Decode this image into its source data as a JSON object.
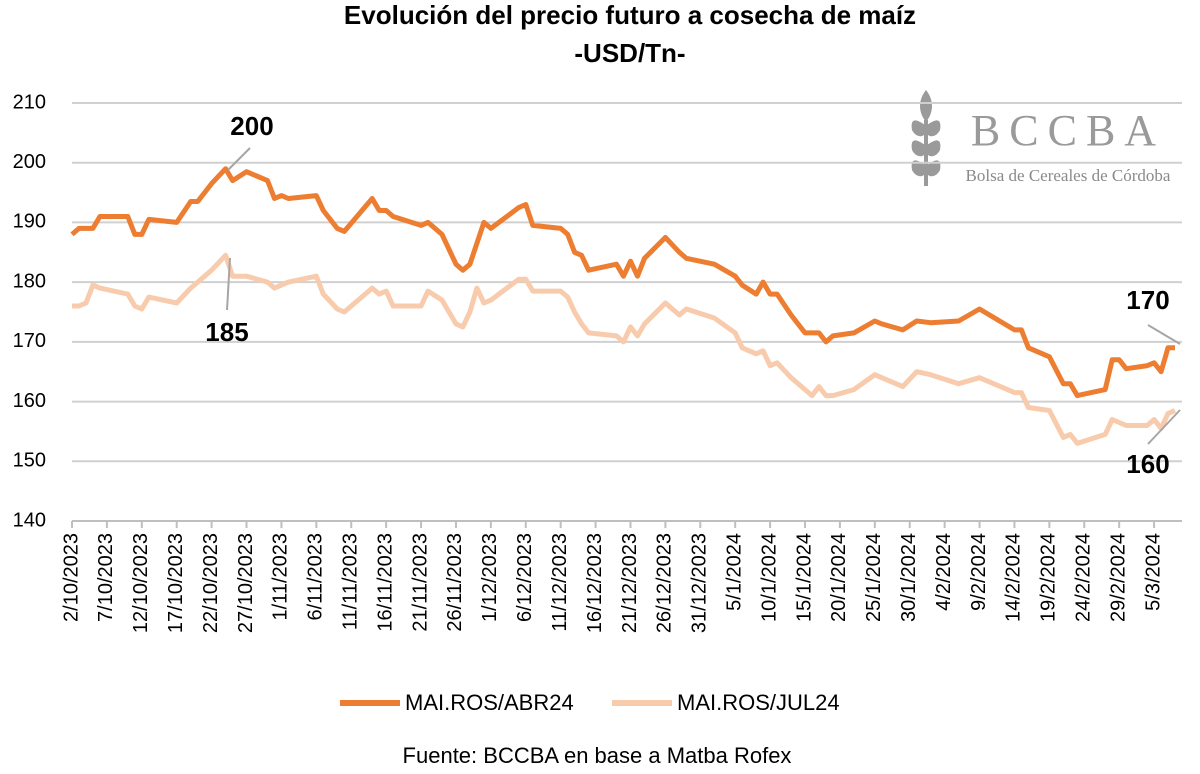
{
  "chart_data": {
    "type": "line",
    "title": "Evolución del precio futuro a cosecha de maíz",
    "subtitle": "-USD/Tn-",
    "source": "Fuente: BCCBA en base a Matba Rofex",
    "logo": {
      "title": "BCCBA",
      "subtitle": "Bolsa de Cereales de Córdoba"
    },
    "x": [
      "2/10/2023",
      "3/10/2023",
      "4/10/2023",
      "5/10/2023",
      "6/10/2023",
      "10/10/2023",
      "11/10/2023",
      "12/10/2023",
      "13/10/2023",
      "17/10/2023",
      "19/10/2023",
      "20/10/2023",
      "22/10/2023",
      "24/10/2023",
      "25/10/2023",
      "27/10/2023",
      "30/10/2023",
      "31/10/2023",
      "1/11/2023",
      "2/11/2023",
      "6/11/2023",
      "7/11/2023",
      "9/11/2023",
      "10/11/2023",
      "14/11/2023",
      "15/11/2023",
      "16/11/2023",
      "17/11/2023",
      "21/11/2023",
      "22/11/2023",
      "24/11/2023",
      "26/11/2023",
      "27/11/2023",
      "28/11/2023",
      "29/11/2023",
      "30/11/2023",
      "1/12/2023",
      "5/12/2023",
      "6/12/2023",
      "7/12/2023",
      "11/12/2023",
      "12/12/2023",
      "13/12/2023",
      "14/12/2023",
      "15/12/2023",
      "19/12/2023",
      "20/12/2023",
      "21/12/2023",
      "22/12/2023",
      "23/12/2023",
      "26/12/2023",
      "28/12/2023",
      "29/12/2023",
      "2/1/2024",
      "5/1/2024",
      "6/1/2024",
      "8/1/2024",
      "9/1/2024",
      "10/1/2024",
      "11/1/2024",
      "13/1/2024",
      "15/1/2024",
      "16/1/2024",
      "17/1/2024",
      "18/1/2024",
      "19/1/2024",
      "22/1/2024",
      "25/1/2024",
      "26/1/2024",
      "29/1/2024",
      "31/1/2024",
      "2/2/2024",
      "6/2/2024",
      "9/2/2024",
      "14/2/2024",
      "15/2/2024",
      "16/2/2024",
      "19/2/2024",
      "21/2/2024",
      "22/2/2024",
      "23/2/2024",
      "27/2/2024",
      "28/2/2024",
      "29/2/2024",
      "1/3/2024",
      "4/3/2024",
      "5/3/2024",
      "6/3/2024",
      "7/3/2024",
      "8/3/2024"
    ],
    "series": [
      {
        "name": "MAI.ROS/ABR24",
        "color": "#ED7D31",
        "values": [
          188,
          189,
          189,
          189,
          191,
          191,
          188,
          188,
          190.5,
          190,
          193.5,
          193.5,
          196.5,
          199,
          197,
          198.5,
          197,
          194,
          194.5,
          194,
          194.5,
          192,
          189,
          188.5,
          194,
          192,
          192,
          191,
          189.5,
          190,
          188,
          183,
          182,
          183,
          186.5,
          190,
          189,
          192.5,
          193,
          189.5,
          189,
          188,
          185,
          184.5,
          182,
          183,
          181,
          183.5,
          181,
          184,
          187.5,
          185,
          184,
          183,
          181,
          179.5,
          178,
          180,
          178,
          178,
          174.5,
          171.5,
          171.5,
          171.5,
          170,
          171,
          171.5,
          173.5,
          173,
          172,
          173.5,
          173.2,
          173.5,
          175.5,
          172,
          172,
          169,
          167.5,
          163,
          163,
          161,
          162,
          167,
          167,
          165.5,
          166,
          166.5,
          165,
          169,
          169
        ]
      },
      {
        "name": "MAI.ROS/JUL24",
        "color": "#F8CBAD",
        "values": [
          176,
          176,
          176.5,
          179.5,
          179,
          178,
          176,
          175.5,
          177.5,
          176.5,
          179,
          180,
          182,
          184.5,
          181,
          181,
          180,
          179,
          179.5,
          180,
          181,
          178,
          175.5,
          175,
          179,
          178,
          178.5,
          176,
          176,
          178.5,
          177,
          173,
          172.5,
          175,
          179,
          176.5,
          177,
          180.5,
          180.5,
          178.5,
          178.5,
          177.5,
          175,
          173,
          171.5,
          171,
          170,
          172.5,
          171,
          173,
          176.5,
          174.5,
          175.5,
          174,
          171.5,
          169,
          168,
          168.5,
          166,
          166.5,
          164,
          162,
          161,
          162.5,
          161,
          161,
          162,
          164.5,
          164,
          162.5,
          165,
          164.5,
          163,
          164,
          161.5,
          161.5,
          159,
          158.5,
          154,
          154.5,
          153,
          154.5,
          157,
          156.5,
          156,
          156,
          157,
          155.5,
          158,
          158.5
        ]
      }
    ],
    "annotations": [
      "200",
      "185",
      "170",
      "160"
    ],
    "xlim": [
      "2/10/2023",
      "9/3/2024"
    ],
    "xticks": [
      "2/10/2023",
      "7/10/2023",
      "12/10/2023",
      "17/10/2023",
      "22/10/2023",
      "27/10/2023",
      "1/11/2023",
      "6/11/2023",
      "11/11/2023",
      "16/11/2023",
      "21/11/2023",
      "26/11/2023",
      "1/12/2023",
      "6/12/2023",
      "11/12/2023",
      "16/12/2023",
      "21/12/2023",
      "26/12/2023",
      "31/12/2023",
      "5/1/2024",
      "10/1/2024",
      "15/1/2024",
      "20/1/2024",
      "25/1/2024",
      "30/1/2024",
      "4/2/2024",
      "9/2/2024",
      "14/2/2024",
      "19/2/2024",
      "24/2/2024",
      "29/2/2024",
      "5/3/2024"
    ],
    "ylim": [
      140,
      210
    ],
    "yticks": [
      140,
      150,
      160,
      170,
      180,
      190,
      200,
      210
    ],
    "grid": true,
    "legend": "bottom"
  }
}
